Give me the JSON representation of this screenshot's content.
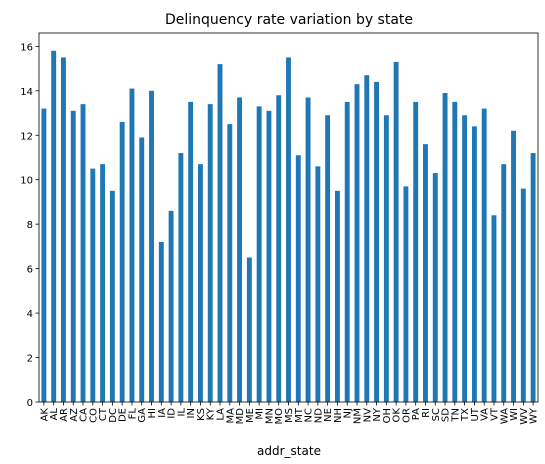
{
  "chart_data": {
    "type": "bar",
    "title": "Delinquency rate variation by state",
    "xlabel": "addr_state",
    "ylabel": "",
    "ylim": [
      0,
      16.6
    ],
    "yticks": [
      0,
      2,
      4,
      6,
      8,
      10,
      12,
      14,
      16
    ],
    "grid": false,
    "colors": {
      "bar": "#1f77b4"
    },
    "categories": [
      "AK",
      "AL",
      "AR",
      "AZ",
      "CA",
      "CO",
      "CT",
      "DC",
      "DE",
      "FL",
      "GA",
      "HI",
      "IA",
      "ID",
      "IL",
      "IN",
      "KS",
      "KY",
      "LA",
      "MA",
      "MD",
      "ME",
      "MI",
      "MN",
      "MO",
      "MS",
      "MT",
      "NC",
      "ND",
      "NE",
      "NH",
      "NJ",
      "NM",
      "NV",
      "NY",
      "OH",
      "OK",
      "OR",
      "PA",
      "RI",
      "SC",
      "SD",
      "TN",
      "TX",
      "UT",
      "VA",
      "VT",
      "WA",
      "WI",
      "WV",
      "WY"
    ],
    "values": [
      13.2,
      15.8,
      15.5,
      13.1,
      13.4,
      10.5,
      10.7,
      9.5,
      12.6,
      14.1,
      11.9,
      14.0,
      7.2,
      8.6,
      11.2,
      13.5,
      10.7,
      13.4,
      15.2,
      12.5,
      13.7,
      6.5,
      13.3,
      13.1,
      13.8,
      15.5,
      11.1,
      13.7,
      10.6,
      12.9,
      9.5,
      13.5,
      14.3,
      14.7,
      14.4,
      12.9,
      15.3,
      9.7,
      13.5,
      11.6,
      10.3,
      13.9,
      13.5,
      12.9,
      12.4,
      13.2,
      8.4,
      10.7,
      12.2,
      9.6,
      11.2
    ]
  }
}
